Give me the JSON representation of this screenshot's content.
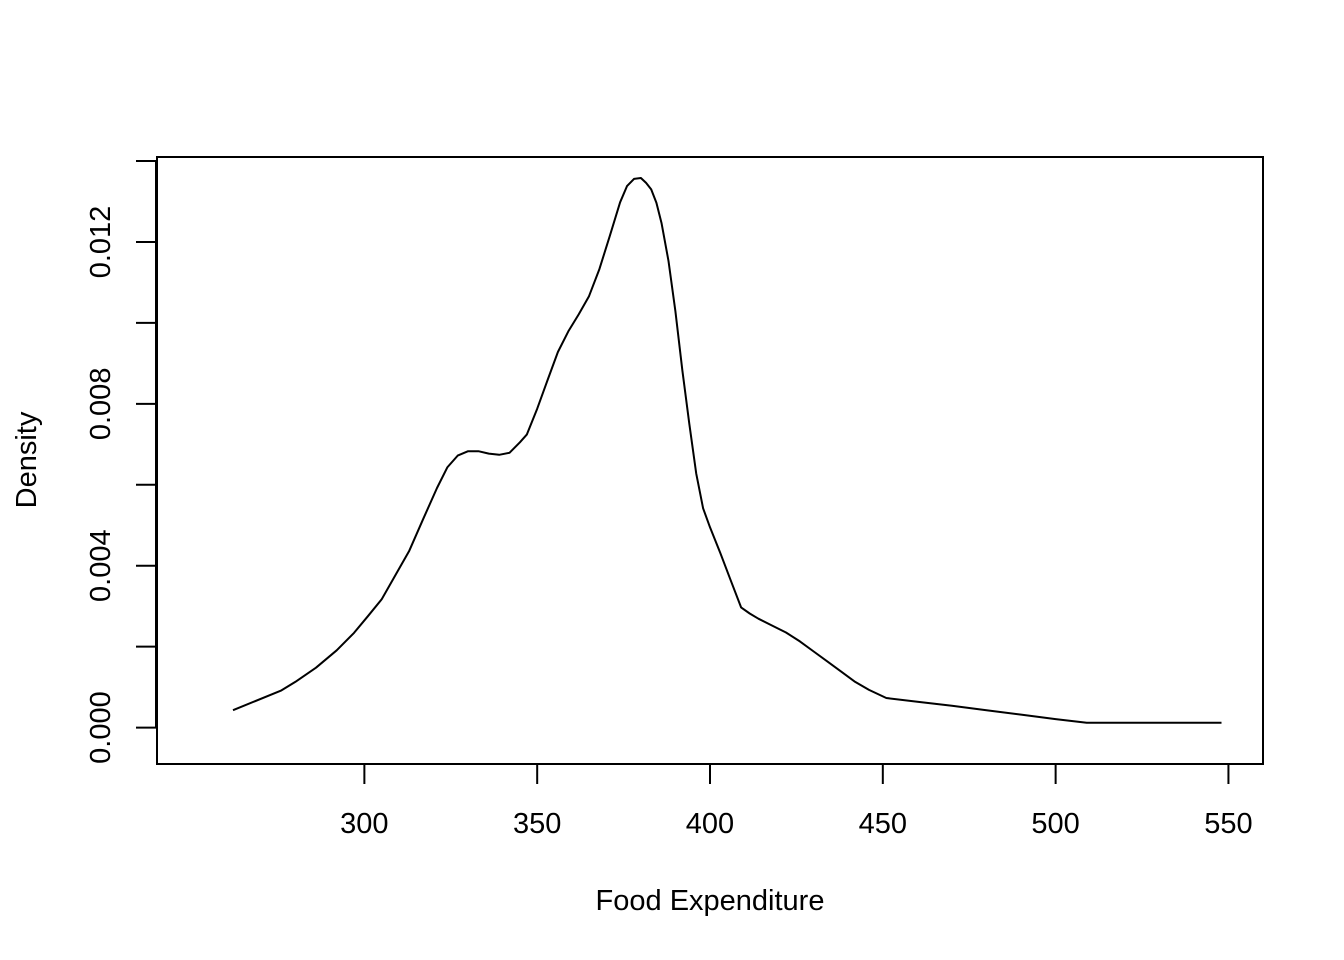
{
  "chart_data": {
    "type": "line",
    "title": "",
    "xlabel": "Food Expenditure",
    "ylabel": "Density",
    "xlim": [
      240,
      560
    ],
    "ylim": [
      -0.0009,
      0.0141
    ],
    "xticks": [
      300,
      350,
      400,
      450,
      500,
      550
    ],
    "xtick_labels": [
      "300",
      "350",
      "400",
      "450",
      "500",
      "550"
    ],
    "yticks": [
      0,
      0.002,
      0.004,
      0.006,
      0.008,
      0.01,
      0.012,
      0.014
    ],
    "ytick_labels": [
      "0.000",
      "",
      "0.004",
      "",
      "0.008",
      "",
      "0.012",
      ""
    ],
    "grid": false,
    "legend": "none",
    "line_color": "#000000",
    "series": [
      {
        "x": [
          262,
          276,
          280,
          286,
          292,
          297,
          301,
          305,
          309,
          313,
          317,
          321,
          324,
          327,
          330,
          333,
          336,
          339,
          342,
          345,
          347,
          350,
          353,
          356,
          359,
          362,
          365,
          368,
          371,
          374,
          376,
          378,
          380,
          381.5,
          383,
          384.5,
          386,
          388,
          390,
          392,
          394,
          396,
          398,
          400,
          403,
          406,
          409,
          411.5,
          414,
          418,
          422,
          426,
          430,
          434,
          438,
          442,
          446,
          451,
          460,
          470,
          480,
          490,
          500,
          509,
          520,
          530,
          540,
          548
        ],
        "y": [
          0.00043,
          0.00092,
          0.00113,
          0.00148,
          0.00191,
          0.00234,
          0.00275,
          0.00317,
          0.00377,
          0.00437,
          0.00515,
          0.00592,
          0.00643,
          0.00672,
          0.00683,
          0.00683,
          0.00677,
          0.00674,
          0.00679,
          0.00705,
          0.00724,
          0.00788,
          0.00859,
          0.00928,
          0.00979,
          0.01021,
          0.01066,
          0.01133,
          0.01215,
          0.01298,
          0.01338,
          0.01356,
          0.01358,
          0.01346,
          0.0133,
          0.01297,
          0.01246,
          0.01153,
          0.01029,
          0.00882,
          0.00751,
          0.00628,
          0.00542,
          0.00495,
          0.00431,
          0.00364,
          0.00297,
          0.00282,
          0.00269,
          0.00252,
          0.00235,
          0.00213,
          0.00188,
          0.00163,
          0.00138,
          0.00113,
          0.00093,
          0.00073,
          0.00064,
          0.00054,
          0.00043,
          0.00032,
          0.00021,
          0.00012,
          0.00012,
          0.00012,
          0.00012,
          0.00012
        ]
      }
    ]
  }
}
